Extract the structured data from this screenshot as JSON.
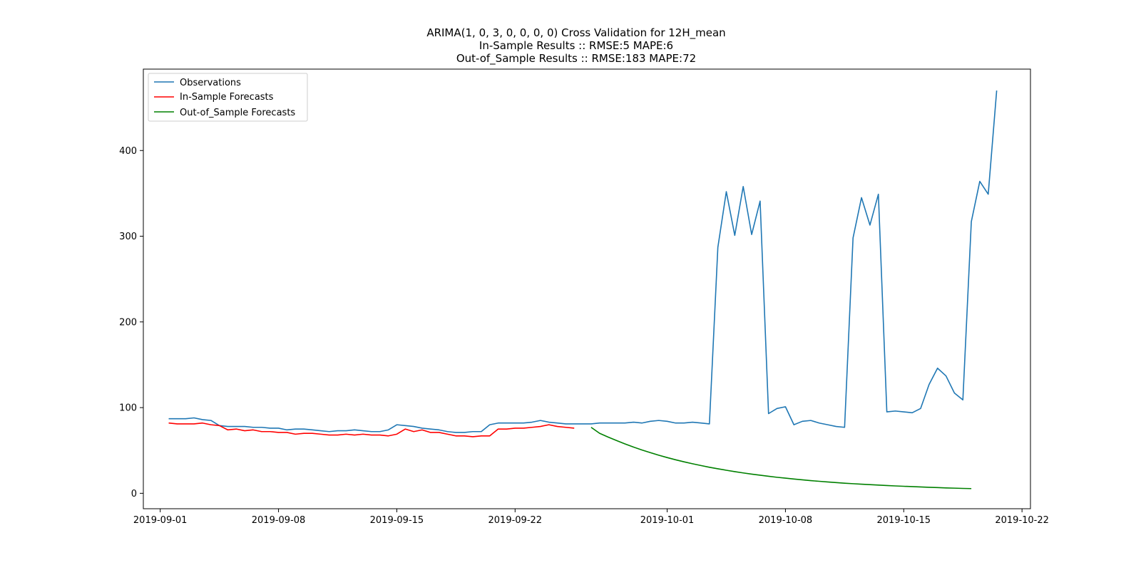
{
  "chart_data": {
    "type": "line",
    "title_lines": [
      "ARIMA(1, 0, 3, 0, 0, 0, 0) Cross Validation for 12H_mean",
      "In-Sample Results :: RMSE:5 MAPE:6",
      "Out-of_Sample Results :: RMSE:183 MAPE:72"
    ],
    "xlabel": "",
    "ylabel": "",
    "x_range": [
      "2019-08-31T00:00",
      "2019-10-22T12:00"
    ],
    "ylim": [
      -18,
      495
    ],
    "x_ticks": [
      "2019-09-01",
      "2019-09-08",
      "2019-09-15",
      "2019-09-22",
      "2019-10-01",
      "2019-10-08",
      "2019-10-15",
      "2019-10-22"
    ],
    "y_ticks": [
      0,
      100,
      200,
      300,
      400
    ],
    "grid": false,
    "legend_position": "upper left",
    "series": [
      {
        "name": "Observations",
        "color": "#1f77b4",
        "x_start": "2019-09-01T12:00",
        "step_hours": 12,
        "values": [
          87,
          87,
          87,
          88,
          86,
          85,
          79,
          78,
          78,
          78,
          77,
          77,
          76,
          76,
          74,
          75,
          75,
          74,
          73,
          72,
          73,
          73,
          74,
          73,
          72,
          72,
          74,
          80,
          79,
          78,
          76,
          75,
          74,
          72,
          71,
          71,
          72,
          72,
          80,
          82,
          82,
          82,
          82,
          83,
          85,
          83,
          82,
          81,
          81,
          81,
          81,
          82,
          82,
          82,
          82,
          83,
          82,
          84,
          85,
          84,
          82,
          82,
          83,
          82,
          81,
          287,
          352,
          301,
          358,
          302,
          341,
          93,
          99,
          101,
          80,
          84,
          85,
          82,
          80,
          78,
          77,
          298,
          345,
          313,
          349,
          95,
          96,
          95,
          94,
          99,
          127,
          146,
          137,
          117,
          109,
          317,
          364,
          349,
          470
        ]
      },
      {
        "name": "In-Sample Forecasts",
        "color": "#ff0000",
        "x_start": "2019-09-01T12:00",
        "step_hours": 12,
        "values": [
          82,
          81,
          81,
          81,
          82,
          80,
          79,
          74,
          75,
          73,
          74,
          72,
          72,
          71,
          71,
          69,
          70,
          70,
          69,
          68,
          68,
          69,
          68,
          69,
          68,
          68,
          67,
          69,
          75,
          72,
          74,
          71,
          71,
          69,
          67,
          67,
          66,
          67,
          67,
          75,
          75,
          76,
          76,
          77,
          78,
          80,
          78,
          77,
          76
        ]
      },
      {
        "name": "Out-of_Sample Forecasts",
        "color": "#008000",
        "x_start": "2019-09-26T12:00",
        "step_hours": 12,
        "values": [
          77,
          70,
          65.7,
          61.6,
          57.7,
          54.0,
          50.6,
          47.5,
          44.5,
          41.7,
          39.1,
          36.7,
          34.5,
          32.4,
          30.4,
          28.6,
          26.9,
          25.3,
          23.8,
          22.4,
          21.1,
          19.9,
          18.7,
          17.7,
          16.7,
          15.7,
          14.8,
          14.0,
          13.2,
          12.5,
          11.8,
          11.2,
          10.6,
          10.1,
          9.6,
          9.1,
          8.6,
          8.2,
          7.8,
          7.4,
          7.0,
          6.7,
          6.3,
          6.0,
          5.7,
          5.5
        ]
      }
    ]
  }
}
